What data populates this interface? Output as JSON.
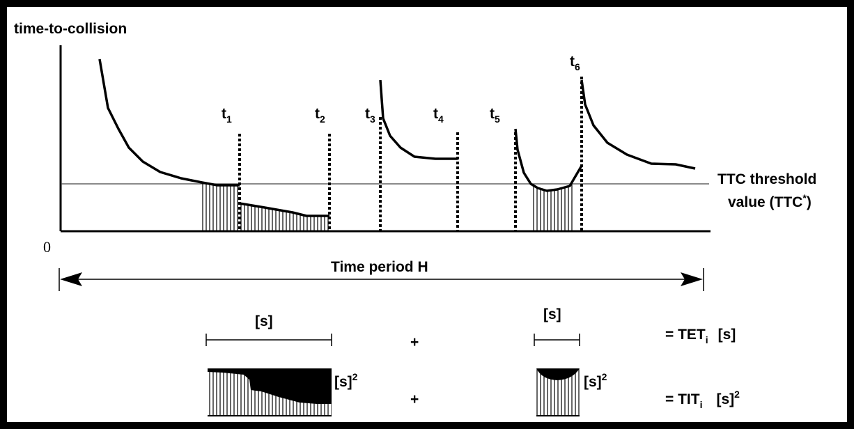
{
  "y_axis_label": "time-to-collision",
  "origin_label": "0",
  "threshold_label": {
    "line1": "TTC threshold",
    "line2_prefix": "value (TTC",
    "line2_sup": "*",
    "line2_suffix": ")"
  },
  "time_markers": [
    {
      "name": "t",
      "sub": "1"
    },
    {
      "name": "t",
      "sub": "2"
    },
    {
      "name": "t",
      "sub": "3"
    },
    {
      "name": "t",
      "sub": "4"
    },
    {
      "name": "t",
      "sub": "5"
    },
    {
      "name": "t",
      "sub": "6"
    }
  ],
  "period_label": "Time period H",
  "bracket_label_1": "[s]",
  "bracket_label_2": "[s]",
  "plus_1": "+",
  "plus_2": "+",
  "tet": {
    "prefix": "= TET",
    "sub": "i",
    "unit": "[s]"
  },
  "tit": {
    "prefix": "= TIT",
    "sub": "i",
    "unit": "[s]",
    "unit_sup": "2"
  },
  "area_unit_1": {
    "text": "[s]",
    "sup": "2"
  },
  "area_unit_2": {
    "text": "[s]",
    "sup": "2"
  },
  "colors": {
    "ink": "#000000",
    "background": "#ffffff",
    "threshold": "#444444"
  }
}
